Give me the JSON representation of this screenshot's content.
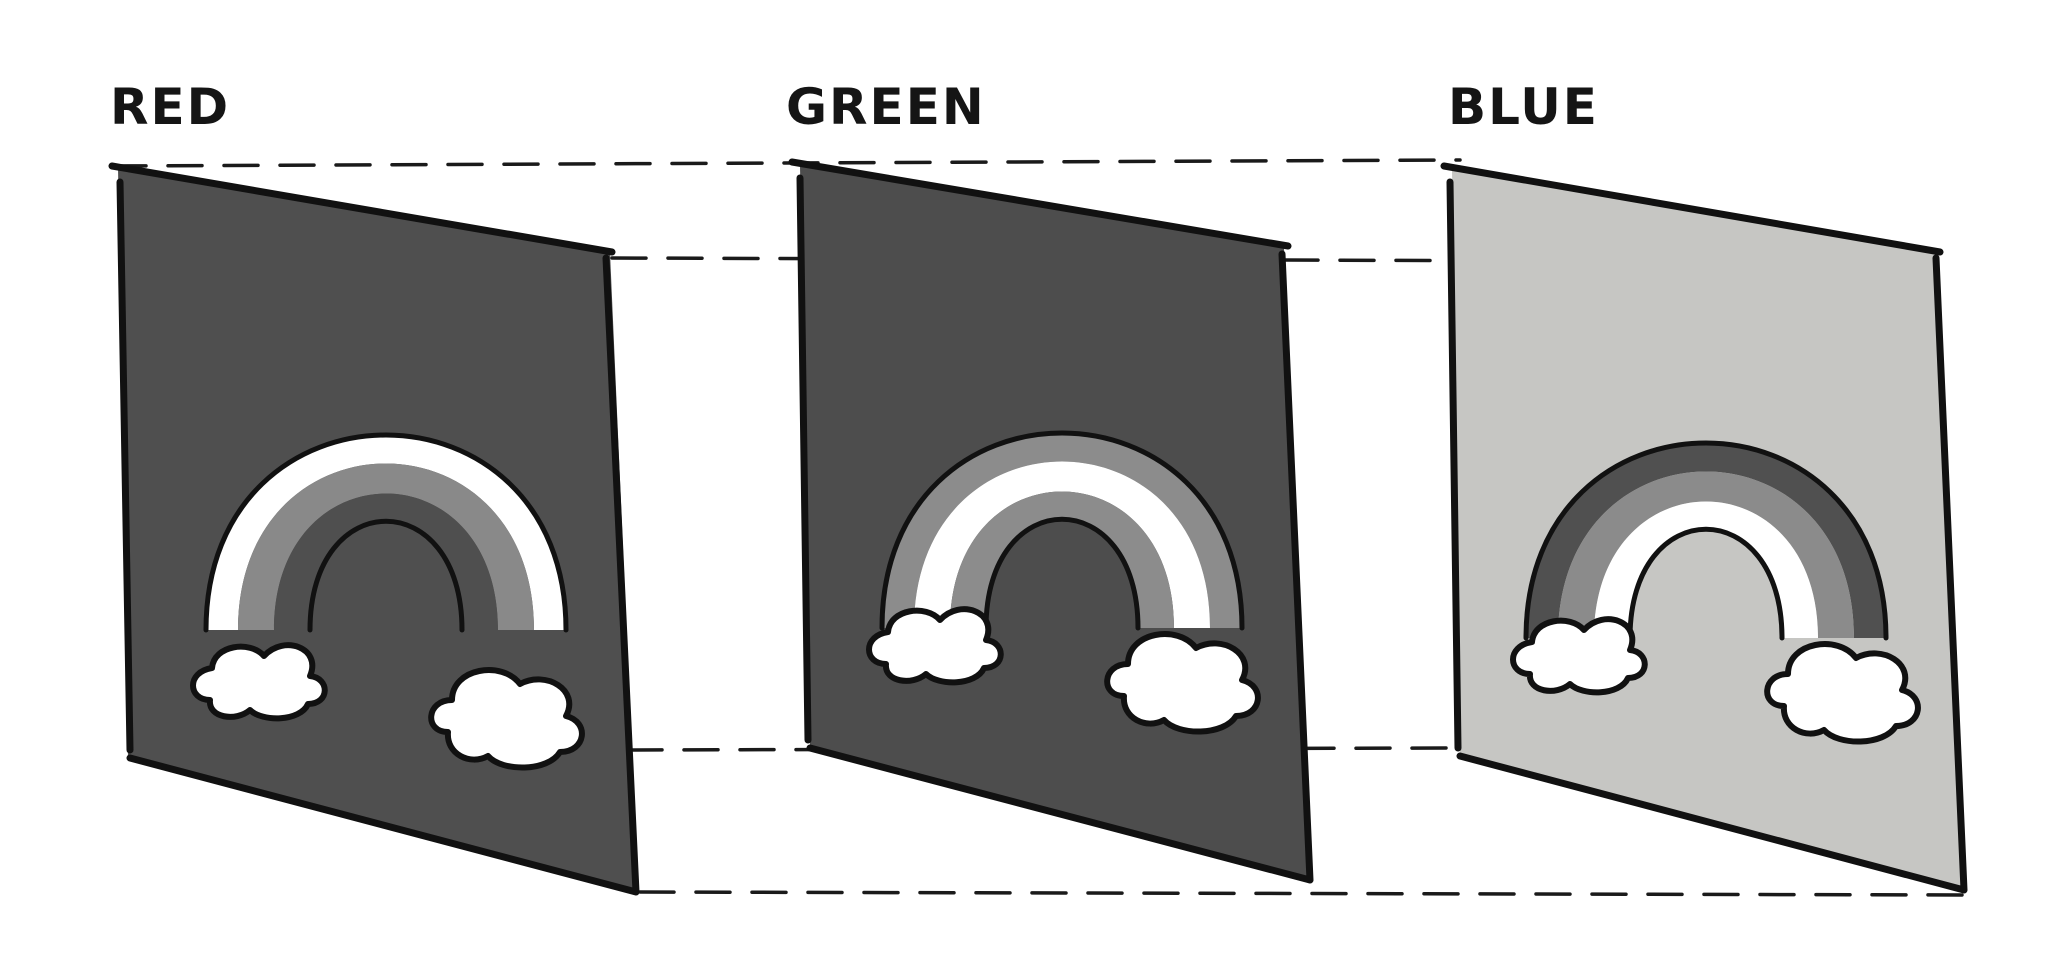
{
  "channels": [
    {
      "label": "RED",
      "panel_fill": "#4f4f4f",
      "band_fills": [
        "#ffffff",
        "#898989",
        "#4f4f4f"
      ]
    },
    {
      "label": "GREEN",
      "panel_fill": "#4d4d4d",
      "band_fills": [
        "#8c8c8c",
        "#ffffff",
        "#8c8c8c"
      ]
    },
    {
      "label": "BLUE",
      "panel_fill": "#c6c6c3",
      "band_fills": [
        "#505050",
        "#8b8b8b",
        "#ffffff"
      ]
    }
  ],
  "colors": {
    "outline": "#111111",
    "cloud": "#ffffff",
    "background": "#ffffff"
  }
}
